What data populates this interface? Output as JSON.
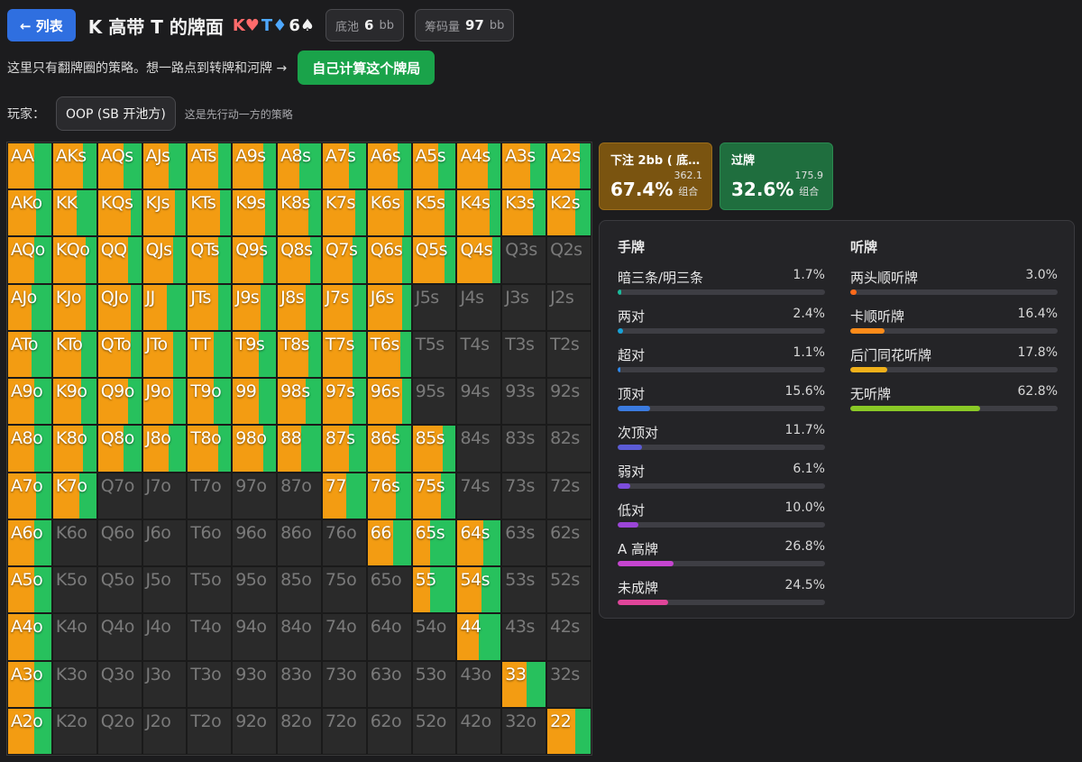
{
  "header": {
    "back_label": "← 列表",
    "title": "K 高带 T 的牌面",
    "board": [
      {
        "rank": "K",
        "suit": "♥"
      },
      {
        "rank": "T",
        "suit": "♦"
      },
      {
        "rank": "6",
        "suit": "♠"
      }
    ],
    "pot_label": "底池",
    "pot_value": "6",
    "pot_unit": "bb",
    "stack_label": "筹码量",
    "stack_value": "97",
    "stack_unit": "bb"
  },
  "notice": {
    "text": "这里只有翻牌圈的策略。想一路点到转牌和河牌 →",
    "button": "自己计算这个牌局"
  },
  "player": {
    "label": "玩家：",
    "selected": "OOP (SB 开池方)",
    "hint": "这是先行动一方的策略"
  },
  "colors": {
    "bet": "#f39c12",
    "check": "#27c15d",
    "empty": "#2a2a2a"
  },
  "ranks": [
    "A",
    "K",
    "Q",
    "J",
    "T",
    "9",
    "8",
    "7",
    "6",
    "5",
    "4",
    "3",
    "2"
  ],
  "grid_rows": [
    {
      "cells": [
        [
          "AA",
          0.6
        ],
        [
          "AKs",
          0.7
        ],
        [
          "AQs",
          0.6
        ],
        [
          "AJs",
          0.6
        ],
        [
          "ATs",
          0.7
        ],
        [
          "A9s",
          0.7
        ],
        [
          "A8s",
          0.5
        ],
        [
          "A7s",
          0.6
        ],
        [
          "A6s",
          0.7
        ],
        [
          "A5s",
          0.6
        ],
        [
          "A4s",
          0.7
        ],
        [
          "A3s",
          0.65
        ],
        [
          "A2s",
          0.75
        ]
      ]
    },
    {
      "cells": [
        [
          "AKo",
          0.65
        ],
        [
          "KK",
          0.55
        ],
        [
          "KQs",
          0.75
        ],
        [
          "KJs",
          0.75
        ],
        [
          "KTs",
          0.75
        ],
        [
          "K9s",
          0.75
        ],
        [
          "K8s",
          0.7
        ],
        [
          "K7s",
          0.75
        ],
        [
          "K6s",
          0.85
        ],
        [
          "K5s",
          0.75
        ],
        [
          "K4s",
          0.75
        ],
        [
          "K3s",
          0.7
        ],
        [
          "K2s",
          0.65
        ]
      ]
    },
    {
      "cells": [
        [
          "AQo",
          0.6
        ],
        [
          "KQo",
          0.75
        ],
        [
          "QQ",
          0.7
        ],
        [
          "QJs",
          0.7
        ],
        [
          "QTs",
          0.7
        ],
        [
          "Q9s",
          0.7
        ],
        [
          "Q8s",
          0.75
        ],
        [
          "Q7s",
          0.7
        ],
        [
          "Q6s",
          0.8
        ],
        [
          "Q5s",
          0.75
        ],
        [
          "Q4s",
          0.8
        ],
        [
          "Q3s",
          0
        ],
        [
          "Q2s",
          0
        ]
      ]
    },
    {
      "cells": [
        [
          "AJo",
          0.55
        ],
        [
          "KJo",
          0.75
        ],
        [
          "QJo",
          0.75
        ],
        [
          "JJ",
          0.55
        ],
        [
          "JTs",
          0.7
        ],
        [
          "J9s",
          0.65
        ],
        [
          "J8s",
          0.65
        ],
        [
          "J7s",
          0.7
        ],
        [
          "J6s",
          0.8
        ],
        [
          "J5s",
          0
        ],
        [
          "J4s",
          0
        ],
        [
          "J3s",
          0
        ],
        [
          "J2s",
          0
        ]
      ]
    },
    {
      "cells": [
        [
          "ATo",
          0.55
        ],
        [
          "KTo",
          0.65
        ],
        [
          "QTo",
          0.75
        ],
        [
          "JTo",
          0.7
        ],
        [
          "TT",
          0.6
        ],
        [
          "T9s",
          0.6
        ],
        [
          "T8s",
          0.7
        ],
        [
          "T7s",
          0.7
        ],
        [
          "T6s",
          0.75
        ],
        [
          "T5s",
          0
        ],
        [
          "T4s",
          0
        ],
        [
          "T3s",
          0
        ],
        [
          "T2s",
          0
        ]
      ]
    },
    {
      "cells": [
        [
          "A9o",
          0.6
        ],
        [
          "K9o",
          0.65
        ],
        [
          "Q9o",
          0.7
        ],
        [
          "J9o",
          0.7
        ],
        [
          "T9o",
          0.6
        ],
        [
          "99",
          0.6
        ],
        [
          "98s",
          0.65
        ],
        [
          "97s",
          0.7
        ],
        [
          "96s",
          0.8
        ],
        [
          "95s",
          0
        ],
        [
          "94s",
          0
        ],
        [
          "93s",
          0
        ],
        [
          "92s",
          0
        ]
      ]
    },
    {
      "cells": [
        [
          "A8o",
          0.6
        ],
        [
          "K8o",
          0.7
        ],
        [
          "Q8o",
          0.6
        ],
        [
          "J8o",
          0.6
        ],
        [
          "T8o",
          0.7
        ],
        [
          "98o",
          0.7
        ],
        [
          "88",
          0.55
        ],
        [
          "87s",
          0.6
        ],
        [
          "86s",
          0.65
        ],
        [
          "85s",
          0.7
        ],
        [
          "84s",
          0
        ],
        [
          "83s",
          0
        ],
        [
          "82s",
          0
        ]
      ]
    },
    {
      "cells": [
        [
          "A7o",
          0.65
        ],
        [
          "K7o",
          0.6
        ],
        [
          "Q7o",
          0
        ],
        [
          "J7o",
          0
        ],
        [
          "T7o",
          0
        ],
        [
          "97o",
          0
        ],
        [
          "87o",
          0
        ],
        [
          "77",
          0.55
        ],
        [
          "76s",
          0.65
        ],
        [
          "75s",
          0.65
        ],
        [
          "74s",
          0
        ],
        [
          "73s",
          0
        ],
        [
          "72s",
          0
        ]
      ]
    },
    {
      "cells": [
        [
          "A6o",
          0.6
        ],
        [
          "K6o",
          0
        ],
        [
          "Q6o",
          0
        ],
        [
          "J6o",
          0
        ],
        [
          "T6o",
          0
        ],
        [
          "96o",
          0
        ],
        [
          "86o",
          0
        ],
        [
          "76o",
          0
        ],
        [
          "66",
          0.6
        ],
        [
          "65s",
          0.4
        ],
        [
          "64s",
          0.6
        ],
        [
          "63s",
          0
        ],
        [
          "62s",
          0
        ]
      ]
    },
    {
      "cells": [
        [
          "A5o",
          0.6
        ],
        [
          "K5o",
          0
        ],
        [
          "Q5o",
          0
        ],
        [
          "J5o",
          0
        ],
        [
          "T5o",
          0
        ],
        [
          "95o",
          0
        ],
        [
          "85o",
          0
        ],
        [
          "75o",
          0
        ],
        [
          "65o",
          0
        ],
        [
          "55",
          0.4
        ],
        [
          "54s",
          0.55
        ],
        [
          "53s",
          0
        ],
        [
          "52s",
          0
        ]
      ]
    },
    {
      "cells": [
        [
          "A4o",
          0.6
        ],
        [
          "K4o",
          0
        ],
        [
          "Q4o",
          0
        ],
        [
          "J4o",
          0
        ],
        [
          "T4o",
          0
        ],
        [
          "94o",
          0
        ],
        [
          "84o",
          0
        ],
        [
          "74o",
          0
        ],
        [
          "64o",
          0
        ],
        [
          "54o",
          0
        ],
        [
          "44",
          0.5
        ],
        [
          "43s",
          0
        ],
        [
          "42s",
          0
        ]
      ]
    },
    {
      "cells": [
        [
          "A3o",
          0.6
        ],
        [
          "K3o",
          0
        ],
        [
          "Q3o",
          0
        ],
        [
          "J3o",
          0
        ],
        [
          "T3o",
          0
        ],
        [
          "93o",
          0
        ],
        [
          "83o",
          0
        ],
        [
          "73o",
          0
        ],
        [
          "63o",
          0
        ],
        [
          "53o",
          0
        ],
        [
          "43o",
          0
        ],
        [
          "33",
          0.55
        ],
        [
          "32s",
          0
        ]
      ]
    },
    {
      "cells": [
        [
          "A2o",
          0.6
        ],
        [
          "K2o",
          0
        ],
        [
          "Q2o",
          0
        ],
        [
          "J2o",
          0
        ],
        [
          "T2o",
          0
        ],
        [
          "92o",
          0
        ],
        [
          "82o",
          0
        ],
        [
          "72o",
          0
        ],
        [
          "62o",
          0
        ],
        [
          "52o",
          0
        ],
        [
          "42o",
          0
        ],
        [
          "32o",
          0
        ],
        [
          "22",
          0.65
        ]
      ]
    }
  ],
  "actions": [
    {
      "name": "下注 2bb ( 底…",
      "pct": "67.4%",
      "combos": "362.1",
      "combos_label": "组合"
    },
    {
      "name": "过牌",
      "pct": "32.6%",
      "combos": "175.9",
      "combos_label": "组合"
    }
  ],
  "hands": {
    "title": "手牌",
    "items": [
      {
        "name": "暗三条/明三条",
        "value": "1.7%",
        "pct": 1.7,
        "color": "#1abc9c"
      },
      {
        "name": "两对",
        "value": "2.4%",
        "pct": 2.4,
        "color": "#17a2d8"
      },
      {
        "name": "超对",
        "value": "1.1%",
        "pct": 1.1,
        "color": "#2d89ef"
      },
      {
        "name": "顶对",
        "value": "15.6%",
        "pct": 15.6,
        "color": "#3b7be0"
      },
      {
        "name": "次顶对",
        "value": "11.7%",
        "pct": 11.7,
        "color": "#5b5bd6"
      },
      {
        "name": "弱对",
        "value": "6.1%",
        "pct": 6.1,
        "color": "#7c4ddb"
      },
      {
        "name": "低对",
        "value": "10.0%",
        "pct": 10.0,
        "color": "#9b45d8"
      },
      {
        "name": "A 高牌",
        "value": "26.8%",
        "pct": 26.8,
        "color": "#c545d0"
      },
      {
        "name": "未成牌",
        "value": "24.5%",
        "pct": 24.5,
        "color": "#e0459a"
      }
    ]
  },
  "draws": {
    "title": "听牌",
    "items": [
      {
        "name": "两头顺听牌",
        "value": "3.0%",
        "pct": 3.0,
        "color": "#ff6a1a"
      },
      {
        "name": "卡顺听牌",
        "value": "16.4%",
        "pct": 16.4,
        "color": "#ff8c1a"
      },
      {
        "name": "后门同花听牌",
        "value": "17.8%",
        "pct": 17.8,
        "color": "#f0b01a"
      },
      {
        "name": "无听牌",
        "value": "62.8%",
        "pct": 62.8,
        "color": "#8ac926"
      }
    ]
  }
}
